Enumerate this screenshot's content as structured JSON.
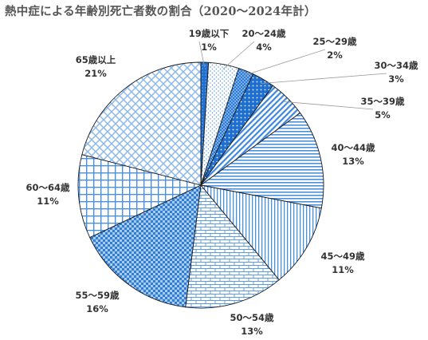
{
  "title": "熱中症による年齢別死亡者数の割合（2020～2024年計）",
  "chart_data": {
    "type": "pie",
    "title": "熱中症による年齢別死亡者数の割合（2020～2024年計）",
    "start_angle_deg": 0,
    "direction": "clockwise",
    "legend": "none",
    "slices": [
      {
        "label": "19歳以下",
        "value": 1,
        "value_label": "1%",
        "pattern": "dots-blue",
        "color": "#1f6fd0"
      },
      {
        "label": "20～24歳",
        "value": 4,
        "value_label": "4%",
        "pattern": "dots-light",
        "color": "#8cb8ea"
      },
      {
        "label": "25～29歳",
        "value": 2,
        "value_label": "2%",
        "pattern": "dots-dense",
        "color": "#2a7ad6"
      },
      {
        "label": "30～34歳",
        "value": 3,
        "value_label": "3%",
        "pattern": "dots-dark",
        "color": "#1f6fd0"
      },
      {
        "label": "35～39歳",
        "value": 5,
        "value_label": "5%",
        "pattern": "diagonal",
        "color": "#3d87dd"
      },
      {
        "label": "40～44歳",
        "value": 13,
        "value_label": "13%",
        "pattern": "horizontal",
        "color": "#4a90e0"
      },
      {
        "label": "45～49歳",
        "value": 11,
        "value_label": "11%",
        "pattern": "vertical",
        "color": "#4a90e0"
      },
      {
        "label": "50～54歳",
        "value": 13,
        "value_label": "13%",
        "pattern": "brick",
        "color": "#5b9be3"
      },
      {
        "label": "55～59歳",
        "value": 16,
        "value_label": "16%",
        "pattern": "checker",
        "color": "#2f7fd8"
      },
      {
        "label": "60～64歳",
        "value": 11,
        "value_label": "11%",
        "pattern": "grid",
        "color": "#4a90e0"
      },
      {
        "label": "65歳以上",
        "value": 21,
        "value_label": "21%",
        "pattern": "diag-lattice",
        "color": "#7fb0e8"
      }
    ]
  }
}
